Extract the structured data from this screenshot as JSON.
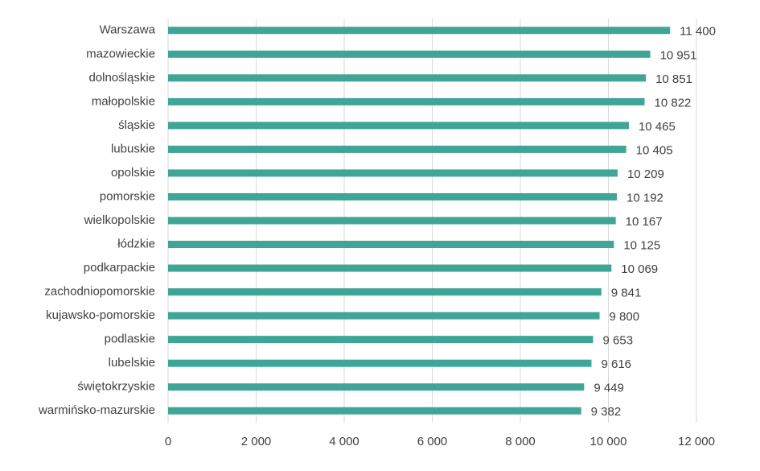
{
  "chart_data": {
    "type": "hbar",
    "categories": [
      "Warszawa",
      "mazowieckie",
      "dolnośląskie",
      "małopolskie",
      "śląskie",
      "lubuskie",
      "opolskie",
      "pomorskie",
      "wielkopolskie",
      "łódzkie",
      "podkarpackie",
      "zachodniopomorskie",
      "kujawsko-pomorskie",
      "podlaskie",
      "lubelskie",
      "świętokrzyskie",
      "warmińsko-mazurskie"
    ],
    "values": [
      11400,
      10951,
      10851,
      10822,
      10465,
      10405,
      10209,
      10192,
      10167,
      10125,
      10069,
      9841,
      9800,
      9653,
      9616,
      9449,
      9382
    ],
    "value_labels": [
      "11 400",
      "10 951",
      "10 851",
      "10 822",
      "10 465",
      "10 405",
      "10 209",
      "10 192",
      "10 167",
      "10 125",
      "10 069",
      "9 841",
      "9 800",
      "9 653",
      "9 616",
      "9 449",
      "9 382"
    ],
    "color": "#3fa596",
    "xlim": [
      0,
      12000
    ],
    "xticks": [
      0,
      {
        "value": 2000,
        "label": "2 000"
      },
      {
        "value": 4000,
        "label": "4 000"
      },
      {
        "value": 6000,
        "label": "6 000"
      },
      {
        "value": 8000,
        "label": "8 000"
      },
      {
        "value": 10000,
        "label": "10 000"
      },
      {
        "value": 12000,
        "label": "12 000"
      }
    ],
    "grid": true
  }
}
